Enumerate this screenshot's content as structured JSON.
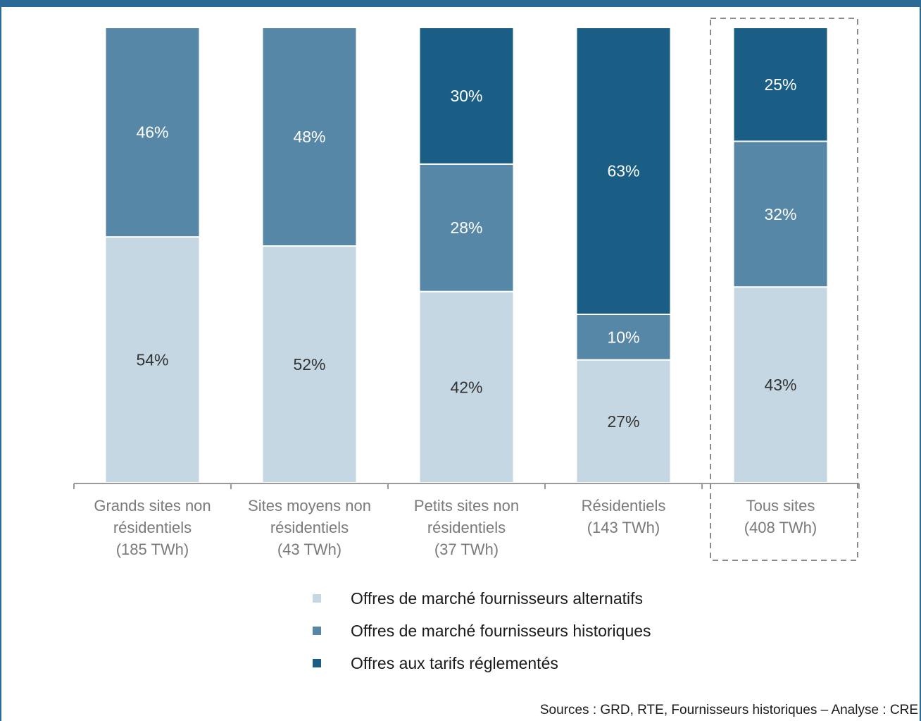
{
  "colors": {
    "alternatifs": "#c5d7e2",
    "historiques": "#5787a7",
    "reglementes": "#1a5e86",
    "frame": "#2b6a96",
    "axis": "#9a9a9a",
    "category_text": "#7a7a7a",
    "label_dark": "#333333",
    "label_light": "#ffffff"
  },
  "chart_data": {
    "type": "bar",
    "stacked": true,
    "normalized_percent": true,
    "categories": [
      [
        "Grands sites non",
        "résidentiels",
        "(185 TWh)"
      ],
      [
        "Sites moyens non",
        "résidentiels",
        "(43 TWh)"
      ],
      [
        "Petits sites non",
        "résidentiels",
        "(37 TWh)"
      ],
      [
        "Résidentiels",
        "(143 TWh)"
      ],
      [
        "Tous sites",
        "(408 TWh)"
      ]
    ],
    "series": [
      {
        "name": "Offres de marché fournisseurs alternatifs",
        "color": "#c5d7e2",
        "values": [
          54,
          52,
          42,
          27,
          43
        ],
        "labels": [
          "54%",
          "52%",
          "42%",
          "27%",
          "43%"
        ]
      },
      {
        "name": "Offres de marché fournisseurs historiques",
        "color": "#5787a7",
        "values": [
          46,
          48,
          28,
          10,
          32
        ],
        "labels": [
          "46%",
          "48%",
          "28%",
          "10%",
          "32%"
        ]
      },
      {
        "name": "Offres aux tarifs réglementés",
        "color": "#1a5e86",
        "values": [
          0,
          0,
          30,
          63,
          25
        ],
        "labels": [
          "",
          "",
          "30%",
          "63%",
          "25%"
        ]
      }
    ],
    "ylim": [
      0,
      100
    ],
    "highlighted_category": 4,
    "legend_position": "bottom"
  },
  "legend": [
    {
      "label": "Offres de marché fournisseurs alternatifs",
      "color": "#c5d7e2"
    },
    {
      "label": "Offres de marché fournisseurs historiques",
      "color": "#5787a7"
    },
    {
      "label": "Offres aux tarifs réglementés",
      "color": "#1a5e86"
    }
  ],
  "source_note": "Sources : GRD, RTE, Fournisseurs historiques – Analyse : CRE"
}
